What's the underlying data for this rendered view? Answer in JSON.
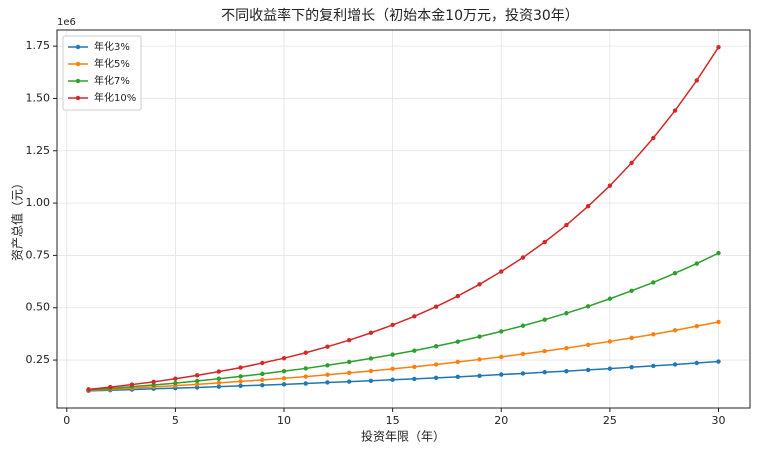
{
  "chart_data": {
    "type": "line",
    "title": "不同收益率下的复利增长（初始本金10万元，投资30年）",
    "x_label": "投资年限（年）",
    "y_label": "资产总值（元）",
    "y_offset_label": "1e6",
    "x": [
      1,
      2,
      3,
      4,
      5,
      6,
      7,
      8,
      9,
      10,
      11,
      12,
      13,
      14,
      15,
      16,
      17,
      18,
      19,
      20,
      21,
      22,
      23,
      24,
      25,
      26,
      27,
      28,
      29,
      30
    ],
    "series": [
      {
        "name": "年化3%",
        "color": "#1f77b4",
        "values": [
          0.103,
          0.106,
          0.109,
          0.113,
          0.116,
          0.119,
          0.123,
          0.127,
          0.13,
          0.134,
          0.138,
          0.143,
          0.147,
          0.151,
          0.156,
          0.16,
          0.165,
          0.17,
          0.175,
          0.181,
          0.186,
          0.192,
          0.197,
          0.203,
          0.209,
          0.216,
          0.222,
          0.229,
          0.236,
          0.243
        ]
      },
      {
        "name": "年化5%",
        "color": "#ff7f0e",
        "values": [
          0.105,
          0.11,
          0.116,
          0.122,
          0.128,
          0.134,
          0.141,
          0.148,
          0.155,
          0.163,
          0.171,
          0.18,
          0.189,
          0.198,
          0.208,
          0.218,
          0.229,
          0.241,
          0.253,
          0.265,
          0.279,
          0.293,
          0.307,
          0.323,
          0.339,
          0.356,
          0.373,
          0.392,
          0.412,
          0.432
        ]
      },
      {
        "name": "年化7%",
        "color": "#2ca02c",
        "values": [
          0.107,
          0.114,
          0.123,
          0.131,
          0.14,
          0.15,
          0.161,
          0.172,
          0.184,
          0.197,
          0.21,
          0.225,
          0.241,
          0.258,
          0.276,
          0.295,
          0.316,
          0.338,
          0.362,
          0.387,
          0.414,
          0.443,
          0.474,
          0.507,
          0.543,
          0.581,
          0.621,
          0.665,
          0.711,
          0.761
        ]
      },
      {
        "name": "年化10%",
        "color": "#d62728",
        "values": [
          0.11,
          0.121,
          0.133,
          0.146,
          0.161,
          0.177,
          0.195,
          0.214,
          0.236,
          0.259,
          0.285,
          0.314,
          0.345,
          0.38,
          0.418,
          0.459,
          0.505,
          0.556,
          0.612,
          0.673,
          0.74,
          0.814,
          0.895,
          0.985,
          1.083,
          1.192,
          1.311,
          1.442,
          1.586,
          1.745
        ]
      }
    ],
    "xlim": [
      -0.45,
      31.45
    ],
    "xticks": [
      0,
      5,
      10,
      15,
      20,
      25,
      30
    ],
    "ylim": [
      0.021,
      1.827
    ],
    "yticks": [
      0.25,
      {
        "value": 0.5,
        "label": "0.50"
      },
      0.75,
      {
        "value": 1,
        "label": "1.00"
      },
      1.25,
      {
        "value": 1.5,
        "label": "1.50"
      },
      1.75
    ],
    "grid": true,
    "legend": "upper left"
  }
}
